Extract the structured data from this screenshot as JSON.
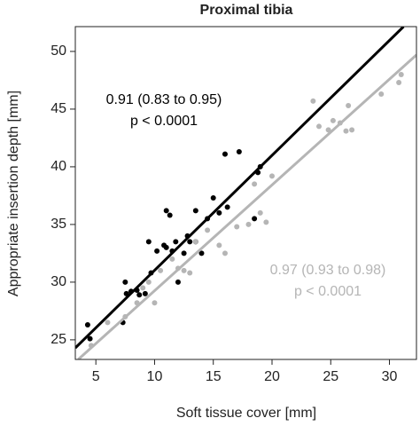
{
  "chart_data": {
    "type": "scatter",
    "title": "Proximal tibia",
    "x_label": "Soft tissue cover [mm]",
    "y_label": "Appropriate insertion depth [mm]",
    "xlim": [
      3.25,
      32.3
    ],
    "ylim": [
      23.3,
      52.15
    ],
    "xticks": [
      5,
      10,
      15,
      20,
      25,
      30
    ],
    "yticks": [
      25,
      30,
      35,
      40,
      45,
      50
    ],
    "series": [
      {
        "color": "#000000",
        "x": [
          4.3,
          4.5,
          7.3,
          7.5,
          7.6,
          8.0,
          8.5,
          8.7,
          9.2,
          9.5,
          9.7,
          10.2,
          10.8,
          11.0,
          11.0,
          11.3,
          11.5,
          11.8,
          12.0,
          12.5,
          12.8,
          13.0,
          13.5,
          13.5,
          14.0,
          14.5,
          15.0,
          15.5,
          16.0,
          16.2,
          17.2,
          18.5,
          18.8,
          19.0
        ],
        "values": [
          26.3,
          25.1,
          26.5,
          30.0,
          29.0,
          29.2,
          29.3,
          28.9,
          29.0,
          33.5,
          30.8,
          32.7,
          33.2,
          36.2,
          33.0,
          35.8,
          32.7,
          33.5,
          30.0,
          32.5,
          34.0,
          33.5,
          36.2,
          33.5,
          32.5,
          35.5,
          37.3,
          36.0,
          41.1,
          36.5,
          41.3,
          35.5,
          39.5,
          40.0
        ],
        "fit": {
          "x": [
            3.25,
            31.2
          ],
          "values": [
            24.3,
            52.15
          ]
        }
      },
      {
        "color": "#b5b5b5",
        "x": [
          4.6,
          6.0,
          7.5,
          8.5,
          9.0,
          9.5,
          10.0,
          10.5,
          11.5,
          12.0,
          12.5,
          13.0,
          13.5,
          14.5,
          15.5,
          16.0,
          17.0,
          18.0,
          18.5,
          19.0,
          19.5,
          20.0,
          23.5,
          24.0,
          24.8,
          25.2,
          25.8,
          26.3,
          26.5,
          26.8,
          29.3,
          30.8,
          31.0
        ],
        "values": [
          24.5,
          26.5,
          27.0,
          28.2,
          29.5,
          30.0,
          28.2,
          31.0,
          32.0,
          31.2,
          31.0,
          30.8,
          33.5,
          34.5,
          33.2,
          32.5,
          34.8,
          35.0,
          38.5,
          36.0,
          35.2,
          39.2,
          45.7,
          43.5,
          43.2,
          44.0,
          43.8,
          43.1,
          45.3,
          43.2,
          46.3,
          47.3,
          48.0
        ],
        "fit": {
          "x": [
            3.5,
            32.3
          ],
          "values": [
            23.3,
            49.7
          ]
        }
      }
    ],
    "annotations": [
      {
        "lines": [
          "0.91 (0.83 to 0.95)",
          "p < 0.0001"
        ],
        "color": "#000000"
      },
      {
        "lines": [
          "0.97 (0.93 to 0.98)",
          "p < 0.0001"
        ],
        "color": "#b5b5b5"
      }
    ]
  }
}
